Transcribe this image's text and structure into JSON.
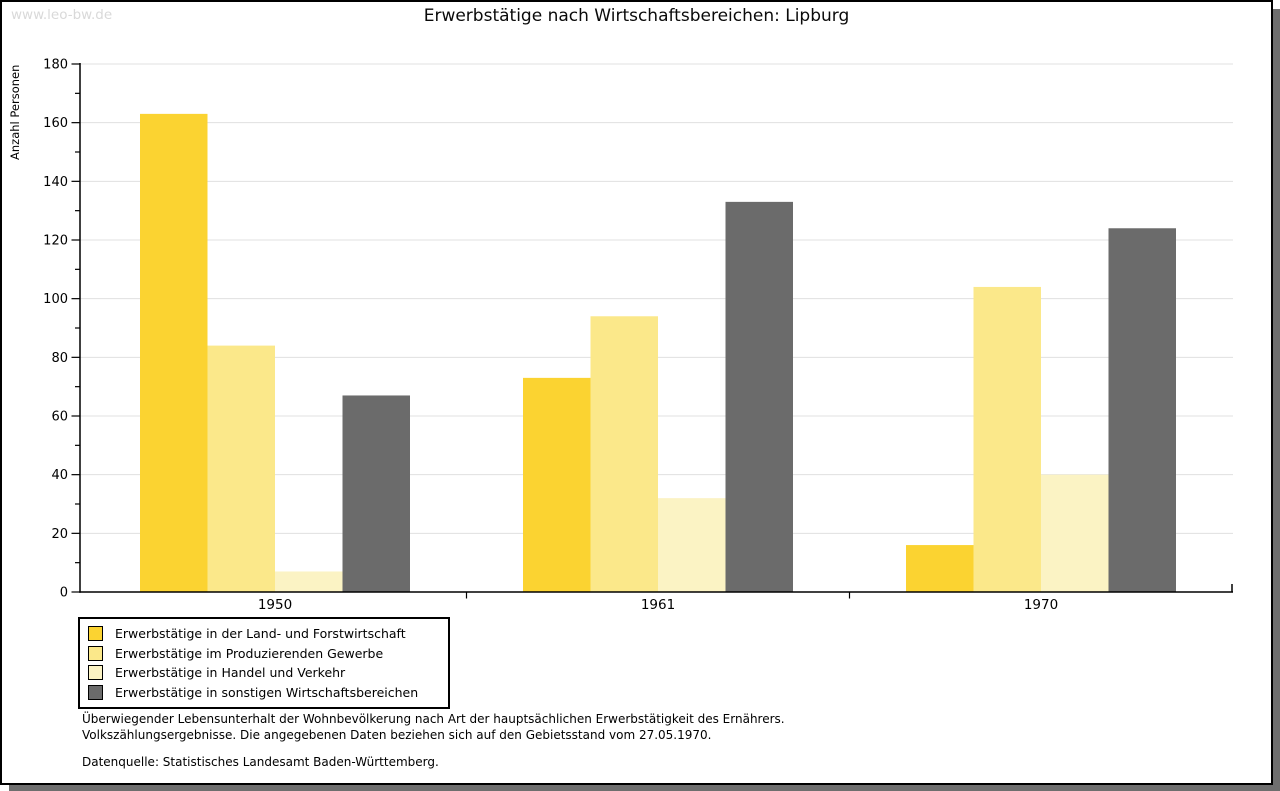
{
  "window": {
    "watermark": "www.leo-bw.de"
  },
  "chart_data": {
    "type": "bar",
    "title": "Erwerbstätige nach Wirtschaftsbereichen: Lipburg",
    "xlabel": "",
    "ylabel": "Anzahl Personen",
    "categories": [
      "1950",
      "1961",
      "1970"
    ],
    "series": [
      {
        "name": "Erwerbstätige in der Land- und Forstwirtschaft",
        "color": "#fbd331",
        "values": [
          163,
          73,
          16
        ]
      },
      {
        "name": "Erwerbstätige im Produzierenden Gewerbe",
        "color": "#fbe88a",
        "values": [
          84,
          94,
          104
        ]
      },
      {
        "name": "Erwerbstätige in Handel und Verkehr",
        "color": "#fbf3c4",
        "values": [
          7,
          32,
          40
        ]
      },
      {
        "name": "Erwerbstätige in sonstigen Wirtschaftsbereichen",
        "color": "#6b6b6b",
        "values": [
          67,
          133,
          124
        ]
      }
    ],
    "ylim": [
      0,
      180
    ],
    "ytick_step": 20,
    "grid": true,
    "gridline_color": "#e0e0e0",
    "legend_position": "bottom-left"
  },
  "footnotes": {
    "line1": "Überwiegender Lebensunterhalt der Wohnbevölkerung nach Art der hauptsächlichen Erwerbstätigkeit des Ernährers.",
    "line2": "Volkszählungsergebnisse. Die angegebenen Daten beziehen sich auf den Gebietsstand vom 27.05.1970.",
    "source": "Datenquelle: Statistisches Landesamt Baden-Württemberg."
  }
}
